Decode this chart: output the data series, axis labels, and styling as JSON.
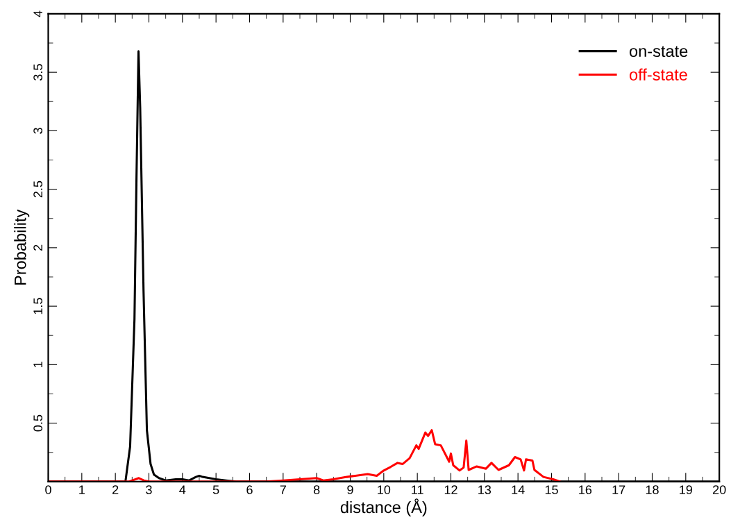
{
  "chart_data": {
    "type": "line",
    "xlabel": "distance (Å)",
    "ylabel": "Probability",
    "xlim": [
      0,
      20
    ],
    "ylim": [
      0,
      4
    ],
    "xticks": [
      0,
      1,
      2,
      3,
      4,
      5,
      6,
      7,
      8,
      9,
      10,
      11,
      12,
      13,
      14,
      15,
      16,
      17,
      18,
      19,
      20
    ],
    "yticks": [
      {
        "value": 0,
        "label": null
      },
      0.5,
      1,
      1.5,
      2,
      2.5,
      3,
      3.5,
      4
    ],
    "grid": false,
    "legend": "top right",
    "marker": "none",
    "line_style": "solid",
    "series": [
      {
        "name": "on-state",
        "color": "#000000",
        "x": [
          0,
          2.3,
          2.44,
          2.57,
          2.63,
          2.69,
          2.74,
          2.84,
          2.94,
          3.05,
          3.15,
          3.3,
          3.5,
          3.8,
          4.0,
          4.2,
          4.4,
          4.5,
          4.6,
          4.8,
          5.0,
          5.3,
          5.6,
          20
        ],
        "values": [
          0,
          0,
          0.3,
          1.39,
          2.6,
          3.68,
          3.2,
          1.63,
          0.44,
          0.15,
          0.06,
          0.03,
          0.01,
          0.02,
          0.02,
          0.01,
          0.04,
          0.05,
          0.04,
          0.03,
          0.02,
          0.01,
          0,
          0
        ]
      },
      {
        "name": "off-state",
        "color": "#ff0000",
        "x": [
          0,
          2.4,
          2.6,
          2.7,
          2.85,
          3.0,
          6.5,
          7.0,
          7.5,
          8.0,
          8.2,
          8.49,
          8.9,
          9.52,
          9.79,
          10.0,
          10.2,
          10.41,
          10.56,
          10.77,
          10.97,
          11.04,
          11.24,
          11.32,
          11.43,
          11.53,
          11.7,
          11.95,
          12.0,
          12.07,
          12.26,
          12.38,
          12.46,
          12.53,
          12.77,
          13.04,
          13.21,
          13.42,
          13.73,
          13.91,
          14.08,
          14.18,
          14.24,
          14.43,
          14.49,
          14.76,
          15.05,
          15.26
        ],
        "values": [
          0,
          0,
          0.02,
          0.03,
          0.01,
          0,
          0,
          0.01,
          0.02,
          0.03,
          0.01,
          0.02,
          0.04,
          0.065,
          0.05,
          0.095,
          0.125,
          0.16,
          0.15,
          0.2,
          0.31,
          0.28,
          0.42,
          0.39,
          0.44,
          0.32,
          0.31,
          0.17,
          0.24,
          0.14,
          0.095,
          0.12,
          0.35,
          0.1,
          0.13,
          0.11,
          0.16,
          0.1,
          0.14,
          0.21,
          0.19,
          0.095,
          0.19,
          0.18,
          0.1,
          0.04,
          0.02,
          0
        ]
      }
    ]
  }
}
